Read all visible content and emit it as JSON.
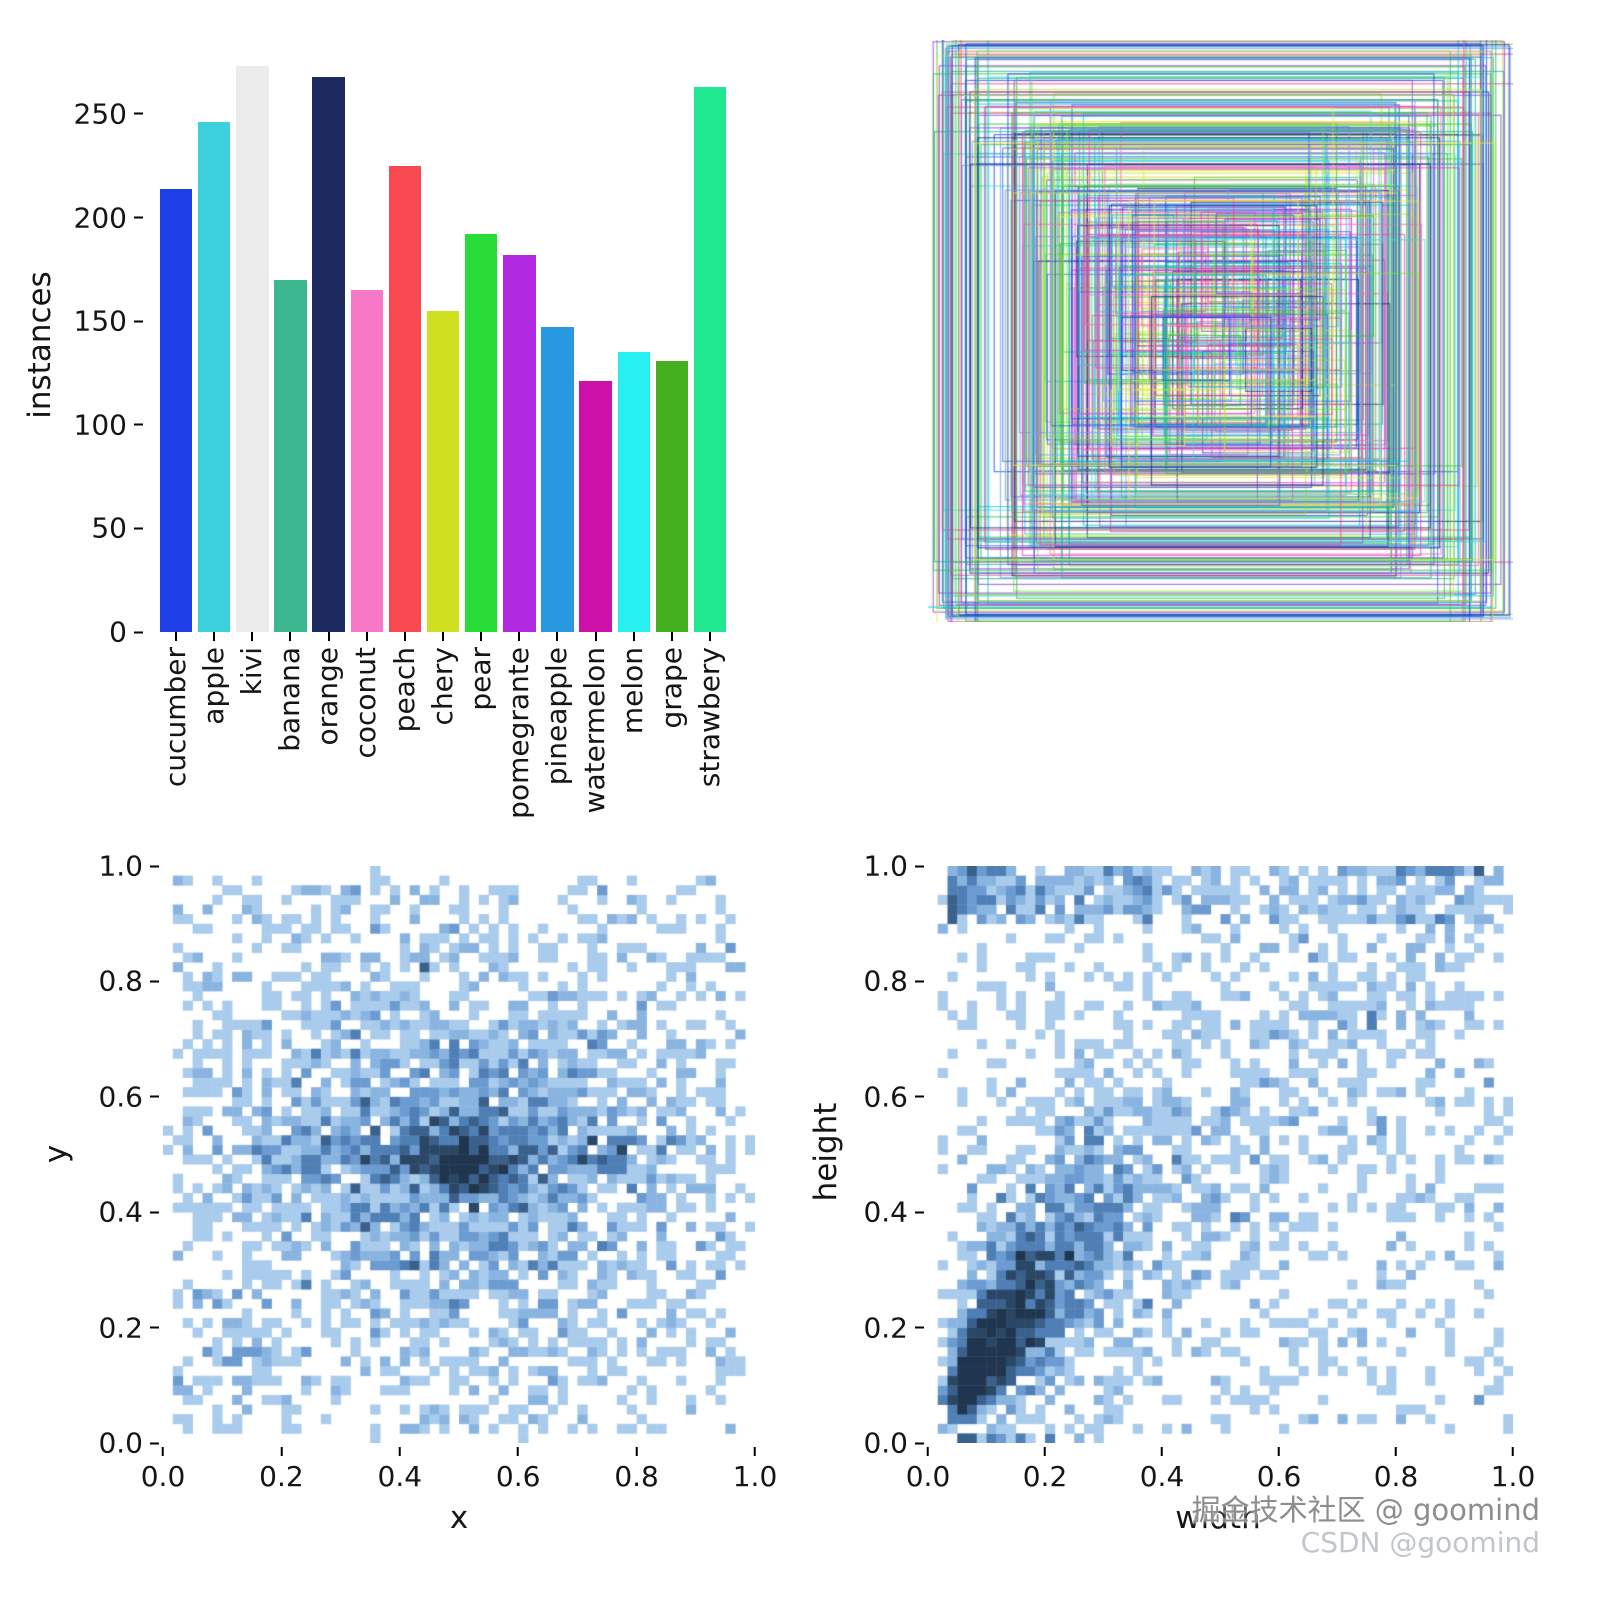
{
  "figure": {
    "background": "#ffffff"
  },
  "watermark": {
    "line1": "掘金技术社区 @ goomind",
    "line2": "CSDN @goomind",
    "color1": "#8d8d8d",
    "color2": "#c2c6cc"
  },
  "chart_data": [
    {
      "type": "bar",
      "title": "",
      "xlabel": "",
      "ylabel": "instances",
      "ymax": 277,
      "ytick_labels": [
        "0",
        "50",
        "100",
        "150",
        "200",
        "250"
      ],
      "ytick_values": [
        0,
        50,
        100,
        150,
        200,
        250
      ],
      "categories": [
        "cucumber",
        "apple",
        "kivi",
        "banana",
        "orange",
        "coconut",
        "peach",
        "chery",
        "pear",
        "pomegrante",
        "pineapple",
        "watermelon",
        "melon",
        "grape",
        "strawbery"
      ],
      "values": [
        214,
        246,
        273,
        170,
        268,
        165,
        225,
        155,
        192,
        182,
        147,
        121,
        135,
        131,
        263
      ],
      "colors": [
        "#1f3fe8",
        "#3ccfdc",
        "#ececec",
        "#3cb890",
        "#1c2a60",
        "#f878c8",
        "#f84850",
        "#cfe020",
        "#28dd38",
        "#b028e0",
        "#2898e0",
        "#cc10a8",
        "#28f0f0",
        "#44b020",
        "#20e890"
      ],
      "grid": false,
      "legend": false
    },
    {
      "type": "boxes",
      "description": "overlaid bounding-box outlines of all dataset labels, concentric around image center with small empty region in the middle",
      "box_count": 340,
      "size_range": [
        0.1,
        0.98
      ],
      "palette": [
        "#40e0d0",
        "#00ced1",
        "#e83ec8",
        "#ff69b4",
        "#2244ee",
        "#4169e1",
        "#1a2a80",
        "#30c040",
        "#7ce840",
        "#c8e030",
        "#e8e848",
        "#9040e0",
        "#20b098",
        "#6aa4f0",
        "#e84890"
      ]
    },
    {
      "type": "heatmap",
      "xlabel": "x",
      "ylabel": "y",
      "xtick_labels": [
        "0.0",
        "0.2",
        "0.4",
        "0.6",
        "0.8",
        "1.0"
      ],
      "ytick_labels": [
        "0.0",
        "0.2",
        "0.4",
        "0.6",
        "0.8",
        "1.0"
      ],
      "xlim": [
        0,
        1
      ],
      "ylim": [
        0,
        1
      ],
      "bins": 60,
      "samples": 3600,
      "distribution": "sparse uniform field over unit square with strong concentration at (0.5, 0.5), darkest cell cluster at center, and a horizontal dense band along y = 0.5",
      "color_low": "#a9cbec",
      "color_high": "#20364e",
      "grid": false
    },
    {
      "type": "heatmap",
      "xlabel": "width",
      "ylabel": "height",
      "xtick_labels": [
        "0.0",
        "0.2",
        "0.4",
        "0.6",
        "0.8",
        "1.0"
      ],
      "ytick_labels": [
        "0.0",
        "0.2",
        "0.4",
        "0.6",
        "0.8",
        "1.0"
      ],
      "xlim": [
        0,
        1
      ],
      "ylim": [
        0,
        1
      ],
      "bins": 60,
      "samples": 3600,
      "distribution": "width and height positively correlated along a diagonal band, densest cluster near (0.2, 0.3), secondary dense band near height = 1.0, sparse elsewhere",
      "color_low": "#a9cbec",
      "color_high": "#20364e",
      "grid": false
    }
  ]
}
